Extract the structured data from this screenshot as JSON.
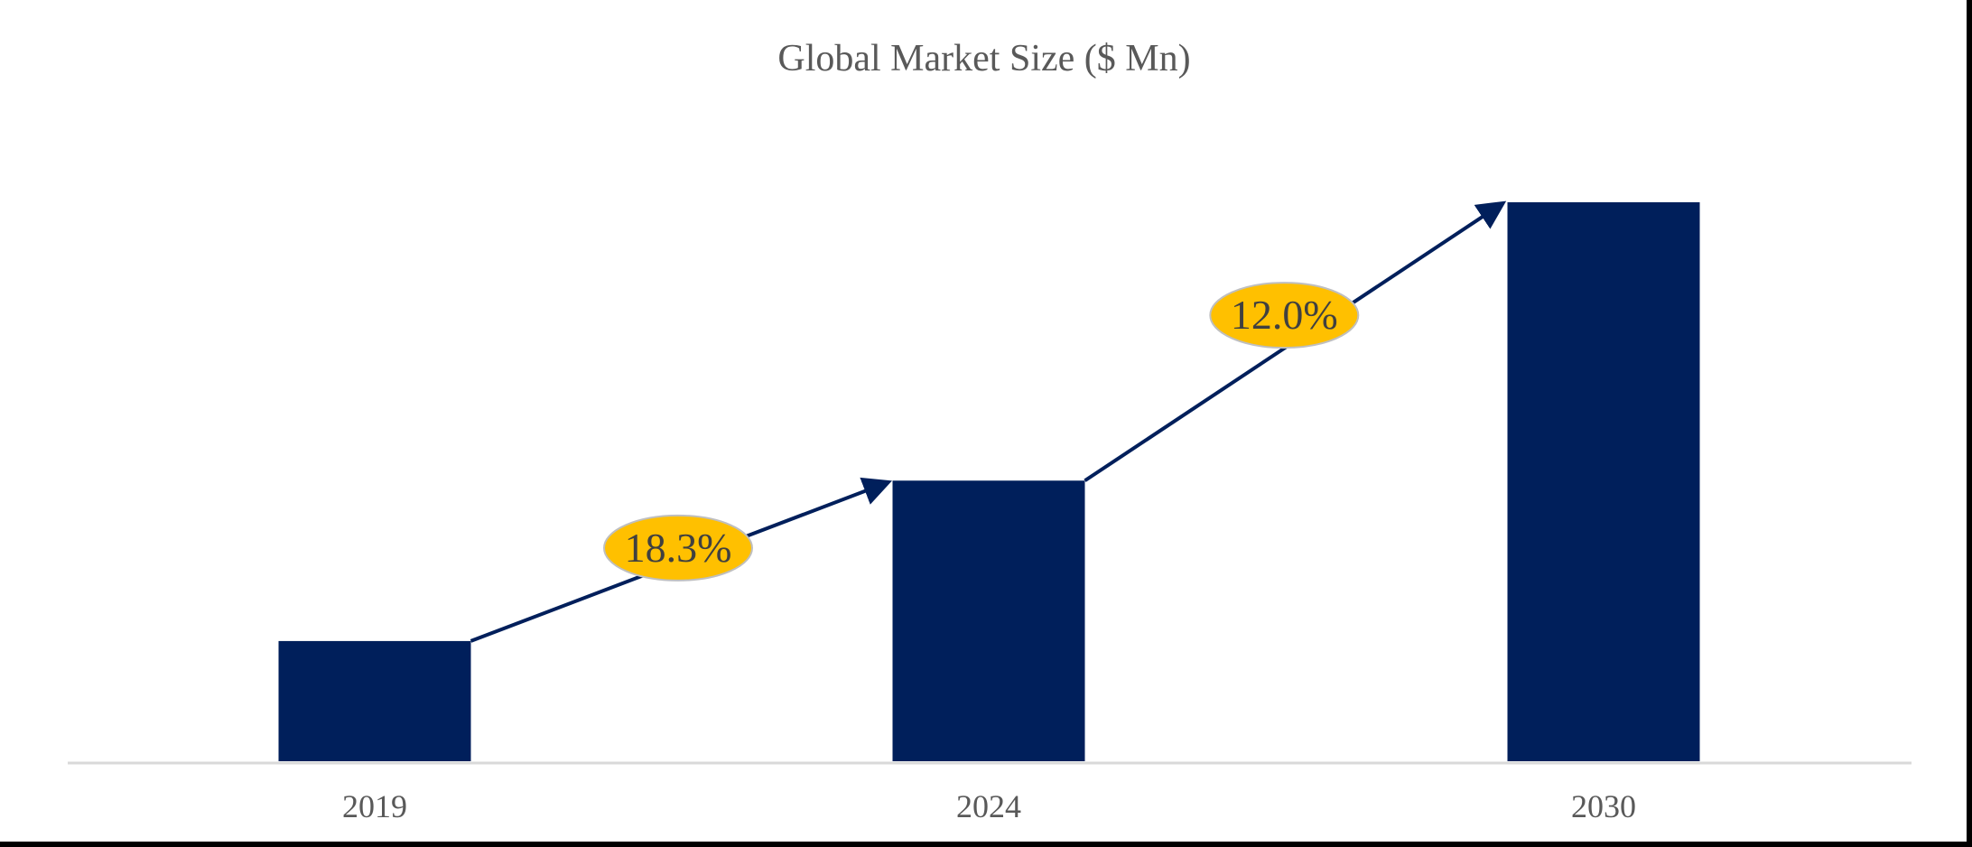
{
  "chart_data": {
    "type": "bar",
    "title": "Global Market Size ($ Mn)",
    "xlabel": "",
    "ylabel": "",
    "categories": [
      "2019",
      "2024",
      "2030"
    ],
    "values": [
      21.5,
      50.2,
      100
    ],
    "value_note_unit": "relative (2030 = 100); no axis values printed",
    "ylim": [
      0,
      100
    ],
    "grid": false,
    "legend": "none",
    "bar_color": "#001f5b",
    "annotations": [
      {
        "from": "2019",
        "to": "2024",
        "label": "18.3%"
      },
      {
        "from": "2024",
        "to": "2030",
        "label": "12.0%"
      }
    ],
    "annotation_fill": "#ffc000",
    "arrow_color": "#001f5b",
    "text_color": "#595959",
    "axis_color": "#d9d9d9"
  }
}
